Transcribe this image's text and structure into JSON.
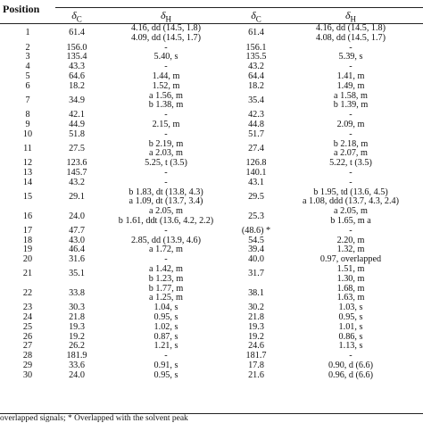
{
  "header": {
    "position": "Position",
    "delta_c": "δ",
    "sub_c": "C",
    "delta_h": "δ",
    "sub_h": "H"
  },
  "rows": [
    {
      "pos": "1",
      "c1": "61.4",
      "h1": [
        "4.16, dd (14.5, 1.8)",
        "4.09, dd (14.5, 1.7)"
      ],
      "c2": "61.4",
      "h2": [
        "4.16, dd (14.5, 1.8)",
        "4.08, dd (14.5, 1.7)"
      ]
    },
    {
      "pos": "2",
      "c1": "156.0",
      "h1": [
        "-"
      ],
      "c2": "156.1",
      "h2": [
        "-"
      ]
    },
    {
      "pos": "3",
      "c1": "135.4",
      "h1": [
        "5.40, s"
      ],
      "c2": "135.5",
      "h2": [
        "5.39, s"
      ]
    },
    {
      "pos": "4",
      "c1": "43.3",
      "h1": [
        "-"
      ],
      "c2": "43.2",
      "h2": [
        "-"
      ]
    },
    {
      "pos": "5",
      "c1": "64.6",
      "h1": [
        "1.44, m"
      ],
      "c2": "64.4",
      "h2": [
        "1.41, m"
      ]
    },
    {
      "pos": "6",
      "c1": "18.2",
      "h1": [
        "1.52, m"
      ],
      "c2": "18.2",
      "h2": [
        "1.49, m"
      ]
    },
    {
      "pos": "7",
      "c1": "34.9",
      "h1": [
        "a 1.56, m",
        "b 1.38, m"
      ],
      "c2": "35.4",
      "h2": [
        "a 1.58, m",
        "b 1.39, m"
      ]
    },
    {
      "pos": "8",
      "c1": "42.1",
      "h1": [
        "-"
      ],
      "c2": "42.3",
      "h2": [
        "-"
      ]
    },
    {
      "pos": "9",
      "c1": "44.9",
      "h1": [
        "2.15, m"
      ],
      "c2": "44.8",
      "h2": [
        "2.09, m"
      ]
    },
    {
      "pos": "10",
      "c1": "51.8",
      "h1": [
        "-"
      ],
      "c2": "51.7",
      "h2": [
        "-"
      ]
    },
    {
      "pos": "11",
      "c1": "27.5",
      "h1": [
        "b 2.19, m",
        "a 2.03, m"
      ],
      "c2": "27.4",
      "h2": [
        "b 2.18, m",
        "a 2.07, m"
      ]
    },
    {
      "pos": "12",
      "c1": "123.6",
      "h1": [
        "5.25, t (3.5)"
      ],
      "c2": "126.8",
      "h2": [
        "5.22, t (3.5)"
      ]
    },
    {
      "pos": "13",
      "c1": "145.7",
      "h1": [
        "-"
      ],
      "c2": "140.1",
      "h2": [
        "-"
      ]
    },
    {
      "pos": "14",
      "c1": "43.2",
      "h1": [
        "-"
      ],
      "c2": "43.1",
      "h2": [
        "-"
      ]
    },
    {
      "pos": "15",
      "c1": "29.1",
      "h1": [
        "b 1.83, dt (13.8, 4.3)",
        "a 1.09, dt (13.7, 3.4)"
      ],
      "c2": "29.5",
      "h2": [
        "b 1.95, td (13.6, 4.5)",
        "a 1.08, ddd (13.7, 4.3, 2.4)"
      ]
    },
    {
      "pos": "16",
      "c1": "24.0",
      "h1": [
        "a 2.05, m",
        "b 1.61, ddt (13.6, 4.2, 2.2)"
      ],
      "c2": "25.3",
      "h2": [
        "a 2.05, m",
        "b 1.65, m a"
      ]
    },
    {
      "pos": "17",
      "c1": "47.7",
      "h1": [
        "-"
      ],
      "c2": "(48.6) *",
      "h2": [
        "-"
      ]
    },
    {
      "pos": "18",
      "c1": "43.0",
      "h1": [
        "2.85, dd (13.9, 4.6)"
      ],
      "c2": "54.5",
      "h2": [
        "2.20, m"
      ]
    },
    {
      "pos": "19",
      "c1": "46.4",
      "h1": [
        "a 1.72, m"
      ],
      "c2": "39.4",
      "h2": [
        "1.32, m"
      ]
    },
    {
      "pos": "20",
      "c1": "31.6",
      "h1": [
        "-"
      ],
      "c2": "40.0",
      "h2": [
        "0.97, overlapped"
      ]
    },
    {
      "pos": "21",
      "c1": "35.1",
      "h1": [
        "a 1.42, m",
        "b 1.23, m"
      ],
      "c2": "31.7",
      "h2": [
        "1.51, m",
        "1.30, m"
      ]
    },
    {
      "pos": "22",
      "c1": "33.8",
      "h1": [
        "b 1.77, m",
        "a 1.25, m"
      ],
      "c2": "38.1",
      "h2": [
        "1.68, m",
        "1.63, m"
      ]
    },
    {
      "pos": "23",
      "c1": "30.3",
      "h1": [
        "1.04, s"
      ],
      "c2": "30.2",
      "h2": [
        "1.03, s"
      ]
    },
    {
      "pos": "24",
      "c1": "21.8",
      "h1": [
        "0.95, s"
      ],
      "c2": "21.8",
      "h2": [
        "0.95, s"
      ]
    },
    {
      "pos": "25",
      "c1": "19.3",
      "h1": [
        "1.02, s"
      ],
      "c2": "19.3",
      "h2": [
        "1.01, s"
      ]
    },
    {
      "pos": "26",
      "c1": "19.2",
      "h1": [
        "0.87, s"
      ],
      "c2": "19.2",
      "h2": [
        "0.86, s"
      ]
    },
    {
      "pos": "27",
      "c1": "26.2",
      "h1": [
        "1.21, s"
      ],
      "c2": "24.6",
      "h2": [
        "1.13, s"
      ]
    },
    {
      "pos": "28",
      "c1": "181.9",
      "h1": [
        "-"
      ],
      "c2": "181.7",
      "h2": [
        "-"
      ]
    },
    {
      "pos": "29",
      "c1": "33.6",
      "h1": [
        "0.91, s"
      ],
      "c2": "17.8",
      "h2": [
        "0.90, d (6.6)"
      ]
    },
    {
      "pos": "30",
      "c1": "24.0",
      "h1": [
        "0.95, s"
      ],
      "c2": "21.6",
      "h2": [
        "0.96, d (6.6)"
      ]
    }
  ],
  "footnote": "overlapped signals; * Overlapped with the solvent peak"
}
